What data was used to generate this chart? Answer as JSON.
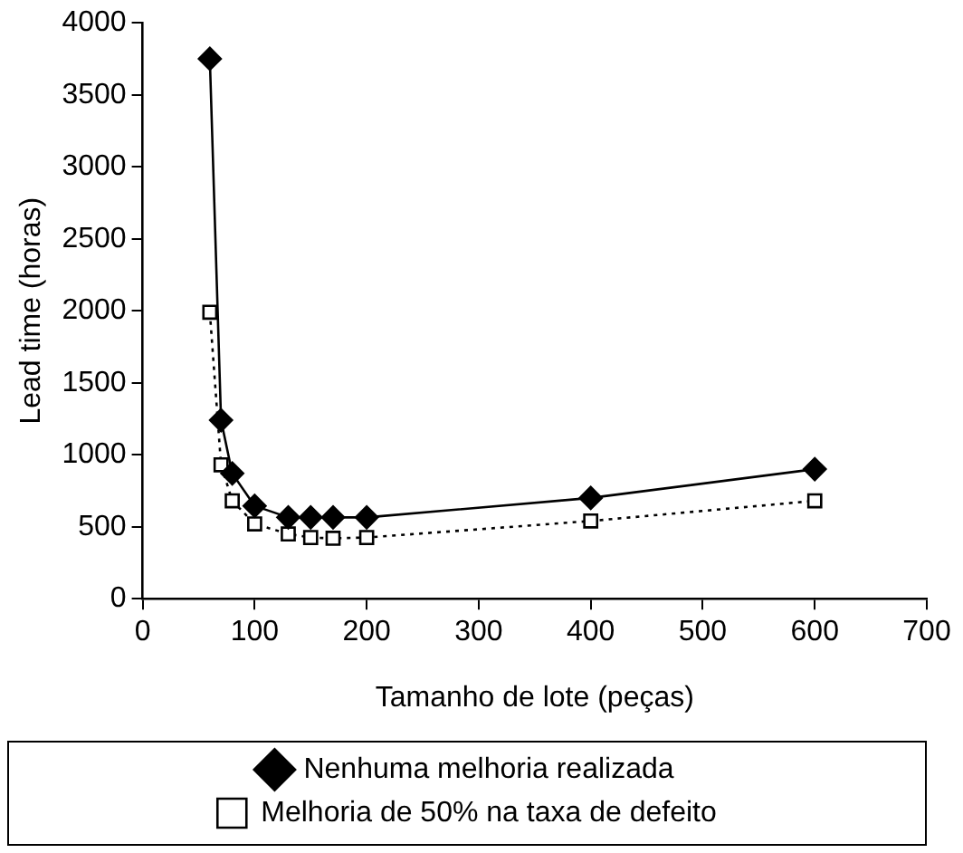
{
  "chart_data": {
    "type": "line",
    "xlabel": "Tamanho de lote (peças)",
    "ylabel": "Lead time (horas)",
    "xlim": [
      0,
      700
    ],
    "xticks": [
      0,
      100,
      200,
      300,
      400,
      500,
      600,
      700
    ],
    "ylim": [
      0,
      4000
    ],
    "yticks": [
      0,
      500,
      1000,
      1500,
      2000,
      2500,
      3000,
      3500,
      4000
    ],
    "grid": false,
    "legend": "bottom",
    "series": [
      {
        "name": "Nenhuma melhoria realizada",
        "color": "#000000",
        "marker": "diamond",
        "line_style": "solid",
        "x": [
          60,
          70,
          80,
          100,
          130,
          150,
          170,
          200,
          400,
          600
        ],
        "values": [
          3750,
          1240,
          870,
          645,
          565,
          565,
          565,
          565,
          700,
          900
        ]
      },
      {
        "name": "Melhoria de 50% na taxa de defeito",
        "color": "#000000",
        "marker": "square",
        "line_style": "dotted",
        "x": [
          60,
          70,
          80,
          100,
          130,
          150,
          170,
          200,
          400,
          600
        ],
        "values": [
          1990,
          930,
          680,
          520,
          450,
          425,
          420,
          425,
          540,
          680
        ]
      }
    ]
  }
}
